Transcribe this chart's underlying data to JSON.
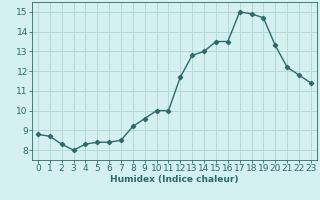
{
  "x": [
    0,
    1,
    2,
    3,
    4,
    5,
    6,
    7,
    8,
    9,
    10,
    11,
    12,
    13,
    14,
    15,
    16,
    17,
    18,
    19,
    20,
    21,
    22,
    23
  ],
  "y": [
    8.8,
    8.7,
    8.3,
    8.0,
    8.3,
    8.4,
    8.4,
    8.5,
    9.2,
    9.6,
    10.0,
    10.0,
    11.7,
    12.8,
    13.0,
    13.5,
    13.5,
    15.0,
    14.9,
    14.7,
    13.3,
    12.2,
    11.8,
    11.4
  ],
  "line_color": "#2d6b6b",
  "marker": "D",
  "marker_size": 2.2,
  "linewidth": 1.0,
  "bg_color": "#d4f0f0",
  "grid_color": "#b8d8d8",
  "xlabel": "Humidex (Indice chaleur)",
  "xlim": [
    -0.5,
    23.5
  ],
  "ylim": [
    7.5,
    15.5
  ],
  "yticks": [
    8,
    9,
    10,
    11,
    12,
    13,
    14,
    15
  ],
  "xticks": [
    0,
    1,
    2,
    3,
    4,
    5,
    6,
    7,
    8,
    9,
    10,
    11,
    12,
    13,
    14,
    15,
    16,
    17,
    18,
    19,
    20,
    21,
    22,
    23
  ],
  "xlabel_fontsize": 6.5,
  "tick_fontsize": 6.5
}
